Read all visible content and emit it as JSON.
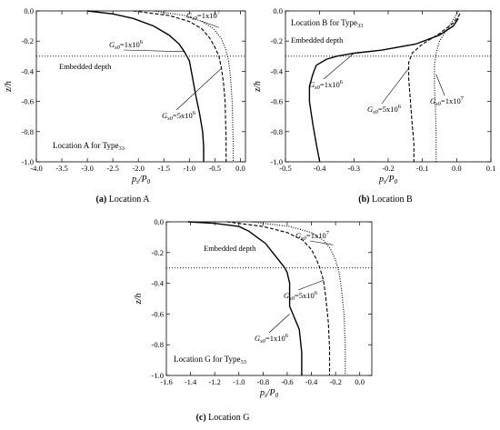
{
  "chart_data": [
    {
      "type": "line",
      "panel": "a",
      "caption_letter": "(a)",
      "caption_text": "Location A",
      "xlim": [
        -4.0,
        0.1
      ],
      "ylim": [
        -1.0,
        0.0
      ],
      "xticks": [
        -4.0,
        -3.5,
        -3.0,
        -2.5,
        -2.0,
        -1.5,
        -1.0,
        -0.5,
        0.0
      ],
      "xtick_labels": [
        "-4.0",
        "-3.5",
        "-3.0",
        "-2.5",
        "-2.0",
        "-1.5",
        "-1.0",
        "-0.5",
        "0.0"
      ],
      "yticks": [
        0.0,
        -0.2,
        -0.4,
        -0.6,
        -0.8,
        -1.0
      ],
      "ytick_labels": [
        "0.0",
        "-0.2",
        "-0.4",
        "-0.6",
        "-0.8",
        "-1.0"
      ],
      "xlabel": "p/P0",
      "ylabel": "z/h",
      "reference_line": {
        "label": "Embedded depth",
        "z": -0.3
      },
      "location_label": "Location A for Type33",
      "series": [
        {
          "name": "Gs0=1x10^6",
          "style": "solid",
          "x": [
            -3.0,
            -2.5,
            -2.1,
            -1.7,
            -1.4,
            -1.2,
            -1.1,
            -1.05,
            -1.0,
            -0.95,
            -0.88,
            -0.8,
            -0.74,
            -0.72,
            -0.72
          ],
          "y": [
            0.0,
            -0.02,
            -0.05,
            -0.1,
            -0.16,
            -0.22,
            -0.27,
            -0.3,
            -0.33,
            -0.42,
            -0.55,
            -0.68,
            -0.8,
            -0.9,
            -1.0
          ]
        },
        {
          "name": "Gs0=5x10^6",
          "style": "dashed",
          "x": [
            -2.1,
            -1.4,
            -1.0,
            -0.75,
            -0.6,
            -0.5,
            -0.42,
            -0.37,
            -0.33,
            -0.3,
            -0.29,
            -0.28,
            -0.28
          ],
          "y": [
            0.0,
            -0.03,
            -0.07,
            -0.12,
            -0.18,
            -0.24,
            -0.3,
            -0.38,
            -0.48,
            -0.6,
            -0.72,
            -0.85,
            -1.0
          ]
        },
        {
          "name": "Gs0=1x10^7",
          "style": "dotted",
          "x": [
            -1.7,
            -1.1,
            -0.75,
            -0.52,
            -0.38,
            -0.29,
            -0.23,
            -0.19,
            -0.16,
            -0.15,
            -0.14,
            -0.14
          ],
          "y": [
            0.0,
            -0.03,
            -0.07,
            -0.12,
            -0.18,
            -0.25,
            -0.33,
            -0.45,
            -0.6,
            -0.75,
            -0.88,
            -1.0
          ]
        }
      ],
      "annotations": [
        {
          "text": "Gs0=1x10^7",
          "series": 2
        },
        {
          "text": "Gs0=1x10^6",
          "series": 0
        },
        {
          "text": "Gs0=5x10^6",
          "series": 1
        }
      ]
    },
    {
      "type": "line",
      "panel": "b",
      "caption_letter": "(b)",
      "caption_text": "Location B",
      "xlim": [
        -0.5,
        0.1
      ],
      "ylim": [
        -1.0,
        0.0
      ],
      "xticks": [
        -0.5,
        -0.4,
        -0.3,
        -0.2,
        -0.1,
        0.0,
        0.1
      ],
      "xtick_labels": [
        "-0.5",
        "-0.4",
        "-0.3",
        "-0.2",
        "-0.1",
        "0.0",
        "0.1"
      ],
      "yticks": [
        0.0,
        -0.2,
        -0.4,
        -0.6,
        -0.8,
        -1.0
      ],
      "ytick_labels": [
        "0.0",
        "-0.2",
        "-0.4",
        "-0.6",
        "-0.8",
        "-1.0"
      ],
      "xlabel": "p/P0",
      "ylabel": "z/h",
      "reference_line": {
        "label": "Embedded depth",
        "z": -0.3
      },
      "location_label": "Location B for Type33",
      "series": [
        {
          "name": "Gs0=1x10^6",
          "style": "solid",
          "x": [
            0.005,
            -0.01,
            -0.05,
            -0.12,
            -0.22,
            -0.3,
            -0.35,
            -0.38,
            -0.41,
            -0.42,
            -0.43,
            -0.43,
            -0.42,
            -0.41,
            -0.4
          ],
          "y": [
            -0.05,
            -0.1,
            -0.16,
            -0.22,
            -0.26,
            -0.28,
            -0.3,
            -0.32,
            -0.36,
            -0.42,
            -0.5,
            -0.6,
            -0.75,
            -0.88,
            -1.0
          ]
        },
        {
          "name": "Gs0=5x10^6",
          "style": "dashed",
          "x": [
            0.01,
            -0.01,
            -0.05,
            -0.1,
            -0.13,
            -0.14,
            -0.14,
            -0.135,
            -0.13,
            -0.125,
            -0.125
          ],
          "y": [
            -0.02,
            -0.08,
            -0.15,
            -0.22,
            -0.28,
            -0.34,
            -0.45,
            -0.6,
            -0.75,
            -0.88,
            -1.0
          ]
        },
        {
          "name": "Gs0=1x10^7",
          "style": "dotted",
          "x": [
            0.005,
            -0.01,
            -0.03,
            -0.05,
            -0.06,
            -0.065,
            -0.065,
            -0.062,
            -0.06,
            -0.06
          ],
          "y": [
            0.0,
            -0.06,
            -0.13,
            -0.2,
            -0.28,
            -0.36,
            -0.5,
            -0.65,
            -0.82,
            -1.0
          ]
        }
      ],
      "annotations": [
        {
          "text": "Gs0=1x10^6",
          "series": 0
        },
        {
          "text": "Gs0=5x10^6",
          "series": 1
        },
        {
          "text": "Gs0=1x10^7",
          "series": 2
        }
      ]
    },
    {
      "type": "line",
      "panel": "c",
      "caption_letter": "(c)",
      "caption_text": "Location G",
      "xlim": [
        -1.6,
        0.1
      ],
      "ylim": [
        -1.0,
        0.0
      ],
      "xticks": [
        -1.6,
        -1.4,
        -1.2,
        -1.0,
        -0.8,
        -0.6,
        -0.4,
        -0.2,
        0.0
      ],
      "xtick_labels": [
        "-1.6",
        "-1.4",
        "-1.2",
        "-1.0",
        "-0.8",
        "-0.6",
        "-0.4",
        "-0.2",
        "0.0"
      ],
      "yticks": [
        0.0,
        -0.2,
        -0.4,
        -0.6,
        -0.8,
        -1.0
      ],
      "ytick_labels": [
        "0.0",
        "-0.2",
        "-0.4",
        "-0.6",
        "-0.8",
        "-1.0"
      ],
      "xlabel": "p/P0",
      "ylabel": "z/h",
      "reference_line": {
        "label": "Embedded depth",
        "z": -0.3
      },
      "location_label": "Location G for Type33",
      "series": [
        {
          "name": "Gs0=1x10^6",
          "style": "solid",
          "x": [
            -1.42,
            -1.2,
            -1.0,
            -0.92,
            -0.85,
            -0.78,
            -0.72,
            -0.66,
            -0.62,
            -0.6,
            -0.58,
            -0.58,
            -0.5,
            -0.48,
            -0.48
          ],
          "y": [
            0.0,
            -0.01,
            -0.03,
            -0.06,
            -0.1,
            -0.14,
            -0.2,
            -0.26,
            -0.3,
            -0.33,
            -0.4,
            -0.55,
            -0.7,
            -0.85,
            -1.0
          ]
        },
        {
          "name": "Gs0=5x10^6",
          "style": "dashed",
          "x": [
            -1.1,
            -0.8,
            -0.6,
            -0.47,
            -0.4,
            -0.36,
            -0.33,
            -0.3,
            -0.28,
            -0.26,
            -0.25,
            -0.25
          ],
          "y": [
            0.0,
            -0.03,
            -0.07,
            -0.12,
            -0.18,
            -0.24,
            -0.3,
            -0.38,
            -0.5,
            -0.65,
            -0.82,
            -1.0
          ]
        },
        {
          "name": "Gs0=1x10^7",
          "style": "dotted",
          "x": [
            -0.9,
            -0.58,
            -0.4,
            -0.3,
            -0.24,
            -0.2,
            -0.17,
            -0.15,
            -0.13,
            -0.12,
            -0.12
          ],
          "y": [
            0.0,
            -0.03,
            -0.07,
            -0.12,
            -0.18,
            -0.25,
            -0.33,
            -0.45,
            -0.6,
            -0.8,
            -1.0
          ]
        }
      ],
      "annotations": [
        {
          "text": "Gs0=1x10^7",
          "series": 2
        },
        {
          "text": "Gs0=5x10^6",
          "series": 1
        },
        {
          "text": "Gs0=1x10^6",
          "series": 0
        }
      ]
    }
  ]
}
